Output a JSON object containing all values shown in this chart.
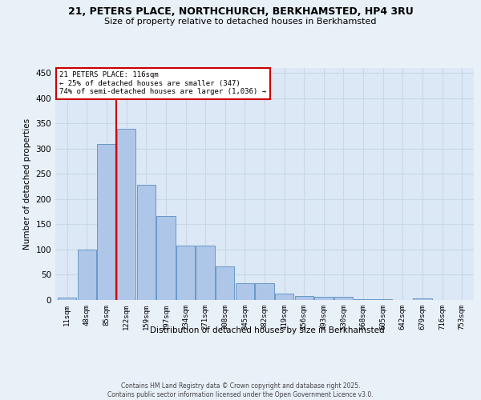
{
  "title_line1": "21, PETERS PLACE, NORTHCHURCH, BERKHAMSTED, HP4 3RU",
  "title_line2": "Size of property relative to detached houses in Berkhamsted",
  "xlabel": "Distribution of detached houses by size in Berkhamsted",
  "ylabel": "Number of detached properties",
  "bin_labels": [
    "11sqm",
    "48sqm",
    "85sqm",
    "122sqm",
    "159sqm",
    "197sqm",
    "234sqm",
    "271sqm",
    "308sqm",
    "345sqm",
    "382sqm",
    "419sqm",
    "456sqm",
    "493sqm",
    "530sqm",
    "568sqm",
    "605sqm",
    "642sqm",
    "679sqm",
    "716sqm",
    "753sqm"
  ],
  "heights": [
    4,
    100,
    310,
    340,
    228,
    167,
    108,
    108,
    67,
    33,
    33,
    12,
    8,
    6,
    6,
    1,
    1,
    0,
    3,
    0,
    0
  ],
  "bar_color": "#aec6e8",
  "bar_edge_color": "#5a8fc2",
  "annotation_line1": "21 PETERS PLACE: 116sqm",
  "annotation_line2": "← 25% of detached houses are smaller (347)",
  "annotation_line3": "74% of semi-detached houses are larger (1,036) →",
  "annotation_box_color": "#ffffff",
  "annotation_box_edge_color": "#cc0000",
  "vline_color": "#cc0000",
  "vline_pos": 2.5,
  "ylim": [
    0,
    460
  ],
  "yticks": [
    0,
    50,
    100,
    150,
    200,
    250,
    300,
    350,
    400,
    450
  ],
  "grid_color": "#c8d8e8",
  "bg_color": "#e8f0f8",
  "plot_bg_color": "#dce8f5",
  "footer_text": "Contains HM Land Registry data © Crown copyright and database right 2025.\nContains public sector information licensed under the Open Government Licence v3.0."
}
